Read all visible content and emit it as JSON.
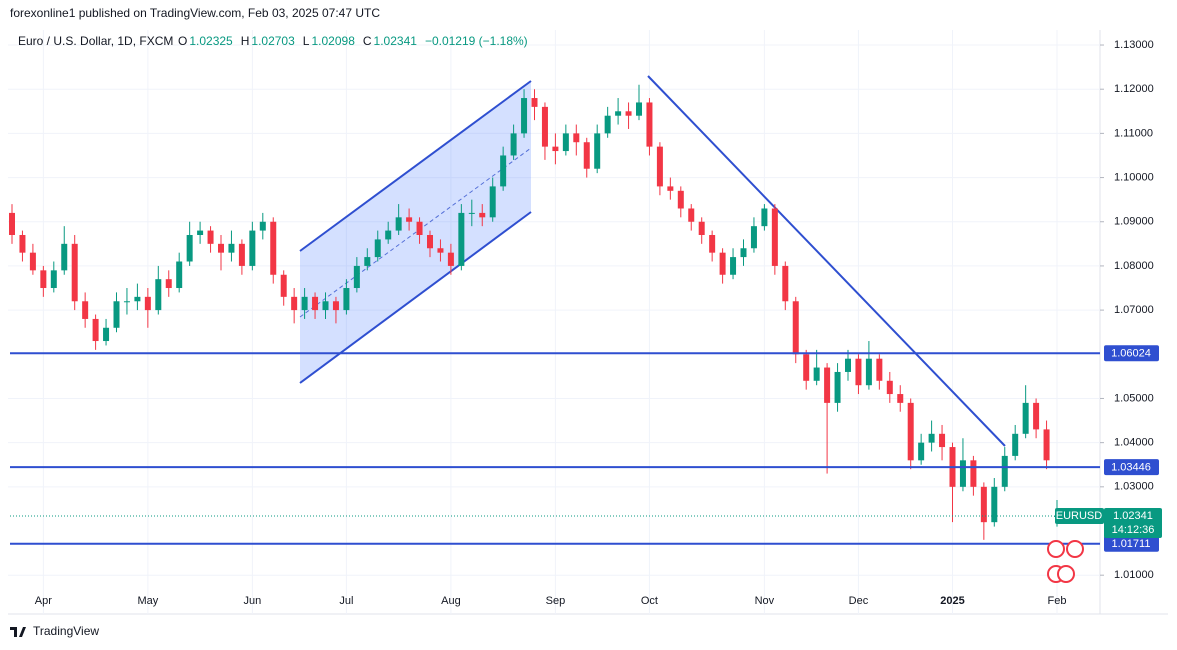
{
  "header": {
    "published": "forexonline1 published on TradingView.com, Feb 03, 2025 07:47 UTC",
    "brand": "TradingView"
  },
  "chart_data": {
    "type": "candlestick",
    "title": "Euro / U.S. Dollar, 1D, FXCM",
    "symbol": "EURUSD",
    "countdown": "14:12:36",
    "ohlc_letters": [
      "O",
      "H",
      "L",
      "C"
    ],
    "change": "−0.01219 (−1.18%)",
    "up_color": "#089981",
    "down_color": "#f23645",
    "line_color": "#2f4fd0",
    "ylim": [
      1.0071,
      1.1334
    ],
    "yticks": [
      {
        "value": 1.13,
        "label": "1.13000"
      },
      {
        "value": 1.12,
        "label": "1.12000"
      },
      {
        "value": 1.11,
        "label": "1.11000"
      },
      {
        "value": 1.1,
        "label": "1.10000"
      },
      {
        "value": 1.09,
        "label": "1.09000"
      },
      {
        "value": 1.08,
        "label": "1.08000"
      },
      {
        "value": 1.07,
        "label": "1.07000"
      },
      {
        "value": 1.05,
        "label": "1.05000"
      },
      {
        "value": 1.04,
        "label": "1.04000"
      },
      {
        "value": 1.03,
        "label": "1.03000"
      },
      {
        "value": 1.01,
        "label": "1.01000"
      }
    ],
    "grid": true,
    "levels": [
      1.06024,
      1.03446,
      1.01711
    ],
    "categories": [
      null,
      null,
      null,
      "Apr",
      null,
      null,
      null,
      null,
      null,
      null,
      null,
      null,
      null,
      "May",
      null,
      null,
      null,
      null,
      null,
      null,
      null,
      null,
      null,
      "Jun",
      null,
      null,
      null,
      null,
      null,
      null,
      null,
      null,
      "Jul",
      null,
      null,
      null,
      null,
      null,
      null,
      null,
      null,
      null,
      "Aug",
      null,
      null,
      null,
      null,
      null,
      null,
      null,
      null,
      null,
      "Sep",
      null,
      null,
      null,
      null,
      null,
      null,
      null,
      null,
      "Oct",
      null,
      null,
      null,
      null,
      null,
      null,
      null,
      null,
      null,
      null,
      "Nov",
      null,
      null,
      null,
      null,
      null,
      null,
      null,
      null,
      "Dec",
      null,
      null,
      null,
      null,
      null,
      null,
      null,
      null,
      "2025",
      null,
      null,
      null,
      null,
      null,
      null,
      null,
      null,
      null,
      "Feb"
    ],
    "ohlc": [
      [
        1.092,
        1.094,
        1.085,
        1.087
      ],
      [
        1.087,
        1.088,
        1.081,
        1.083
      ],
      [
        1.083,
        1.085,
        1.078,
        1.079
      ],
      [
        1.079,
        1.08,
        1.073,
        1.075
      ],
      [
        1.075,
        1.081,
        1.074,
        1.079
      ],
      [
        1.079,
        1.089,
        1.078,
        1.085
      ],
      [
        1.085,
        1.087,
        1.07,
        1.072
      ],
      [
        1.072,
        1.074,
        1.066,
        1.068
      ],
      [
        1.068,
        1.069,
        1.061,
        1.063
      ],
      [
        1.063,
        1.068,
        1.062,
        1.066
      ],
      [
        1.066,
        1.074,
        1.065,
        1.072
      ],
      [
        1.072,
        1.075,
        1.069,
        1.072
      ],
      [
        1.072,
        1.076,
        1.07,
        1.073
      ],
      [
        1.073,
        1.075,
        1.066,
        1.07
      ],
      [
        1.07,
        1.08,
        1.069,
        1.077
      ],
      [
        1.077,
        1.079,
        1.073,
        1.075
      ],
      [
        1.075,
        1.083,
        1.074,
        1.081
      ],
      [
        1.081,
        1.09,
        1.08,
        1.087
      ],
      [
        1.087,
        1.09,
        1.085,
        1.088
      ],
      [
        1.088,
        1.089,
        1.083,
        1.085
      ],
      [
        1.085,
        1.087,
        1.079,
        1.083
      ],
      [
        1.083,
        1.088,
        1.081,
        1.085
      ],
      [
        1.085,
        1.086,
        1.078,
        1.08
      ],
      [
        1.08,
        1.09,
        1.079,
        1.088
      ],
      [
        1.088,
        1.092,
        1.086,
        1.09
      ],
      [
        1.09,
        1.091,
        1.076,
        1.078
      ],
      [
        1.078,
        1.079,
        1.071,
        1.073
      ],
      [
        1.073,
        1.075,
        1.067,
        1.07
      ],
      [
        1.07,
        1.075,
        1.068,
        1.073
      ],
      [
        1.073,
        1.074,
        1.068,
        1.07
      ],
      [
        1.07,
        1.074,
        1.068,
        1.072
      ],
      [
        1.072,
        1.073,
        1.067,
        1.07
      ],
      [
        1.07,
        1.077,
        1.069,
        1.075
      ],
      [
        1.075,
        1.082,
        1.074,
        1.08
      ],
      [
        1.08,
        1.084,
        1.079,
        1.082
      ],
      [
        1.082,
        1.088,
        1.081,
        1.086
      ],
      [
        1.086,
        1.09,
        1.085,
        1.088
      ],
      [
        1.088,
        1.094,
        1.087,
        1.091
      ],
      [
        1.091,
        1.093,
        1.088,
        1.09
      ],
      [
        1.09,
        1.091,
        1.085,
        1.087
      ],
      [
        1.087,
        1.088,
        1.082,
        1.084
      ],
      [
        1.084,
        1.086,
        1.081,
        1.083
      ],
      [
        1.083,
        1.085,
        1.078,
        1.08
      ],
      [
        1.08,
        1.094,
        1.079,
        1.092
      ],
      [
        1.092,
        1.095,
        1.089,
        1.092
      ],
      [
        1.092,
        1.094,
        1.089,
        1.091
      ],
      [
        1.091,
        1.1,
        1.09,
        1.098
      ],
      [
        1.098,
        1.107,
        1.097,
        1.105
      ],
      [
        1.105,
        1.112,
        1.104,
        1.11
      ],
      [
        1.11,
        1.12,
        1.109,
        1.118
      ],
      [
        1.118,
        1.12,
        1.113,
        1.116
      ],
      [
        1.116,
        1.117,
        1.104,
        1.107
      ],
      [
        1.107,
        1.11,
        1.103,
        1.106
      ],
      [
        1.106,
        1.112,
        1.105,
        1.11
      ],
      [
        1.11,
        1.112,
        1.105,
        1.108
      ],
      [
        1.108,
        1.109,
        1.1,
        1.102
      ],
      [
        1.102,
        1.112,
        1.101,
        1.11
      ],
      [
        1.11,
        1.116,
        1.109,
        1.114
      ],
      [
        1.114,
        1.118,
        1.112,
        1.115
      ],
      [
        1.115,
        1.117,
        1.111,
        1.114
      ],
      [
        1.114,
        1.121,
        1.113,
        1.117
      ],
      [
        1.117,
        1.118,
        1.105,
        1.107
      ],
      [
        1.107,
        1.108,
        1.096,
        1.098
      ],
      [
        1.098,
        1.1,
        1.095,
        1.097
      ],
      [
        1.097,
        1.098,
        1.091,
        1.093
      ],
      [
        1.093,
        1.094,
        1.088,
        1.09
      ],
      [
        1.09,
        1.091,
        1.085,
        1.087
      ],
      [
        1.087,
        1.088,
        1.081,
        1.083
      ],
      [
        1.083,
        1.084,
        1.076,
        1.078
      ],
      [
        1.078,
        1.084,
        1.077,
        1.082
      ],
      [
        1.082,
        1.086,
        1.08,
        1.084
      ],
      [
        1.084,
        1.091,
        1.083,
        1.089
      ],
      [
        1.089,
        1.094,
        1.088,
        1.093
      ],
      [
        1.093,
        1.094,
        1.078,
        1.08
      ],
      [
        1.08,
        1.081,
        1.07,
        1.072
      ],
      [
        1.072,
        1.073,
        1.058,
        1.06
      ],
      [
        1.06,
        1.061,
        1.052,
        1.054
      ],
      [
        1.054,
        1.061,
        1.053,
        1.057
      ],
      [
        1.057,
        1.058,
        1.033,
        1.049
      ],
      [
        1.049,
        1.058,
        1.047,
        1.056
      ],
      [
        1.056,
        1.061,
        1.054,
        1.059
      ],
      [
        1.059,
        1.06,
        1.051,
        1.053
      ],
      [
        1.053,
        1.063,
        1.052,
        1.059
      ],
      [
        1.059,
        1.06,
        1.052,
        1.054
      ],
      [
        1.054,
        1.056,
        1.049,
        1.051
      ],
      [
        1.051,
        1.053,
        1.047,
        1.049
      ],
      [
        1.049,
        1.05,
        1.034,
        1.036
      ],
      [
        1.036,
        1.042,
        1.035,
        1.04
      ],
      [
        1.04,
        1.045,
        1.038,
        1.042
      ],
      [
        1.042,
        1.044,
        1.036,
        1.039
      ],
      [
        1.039,
        1.04,
        1.022,
        1.03
      ],
      [
        1.03,
        1.041,
        1.029,
        1.036
      ],
      [
        1.036,
        1.037,
        1.028,
        1.03
      ],
      [
        1.03,
        1.031,
        1.018,
        1.022
      ],
      [
        1.022,
        1.032,
        1.021,
        1.03
      ],
      [
        1.03,
        1.039,
        1.029,
        1.037
      ],
      [
        1.037,
        1.044,
        1.036,
        1.042
      ],
      [
        1.042,
        1.053,
        1.041,
        1.049
      ],
      [
        1.049,
        1.05,
        1.041,
        1.043
      ],
      [
        1.043,
        1.045,
        1.034,
        1.036
      ],
      [
        1.02325,
        1.02703,
        1.02098,
        1.02341
      ]
    ]
  }
}
